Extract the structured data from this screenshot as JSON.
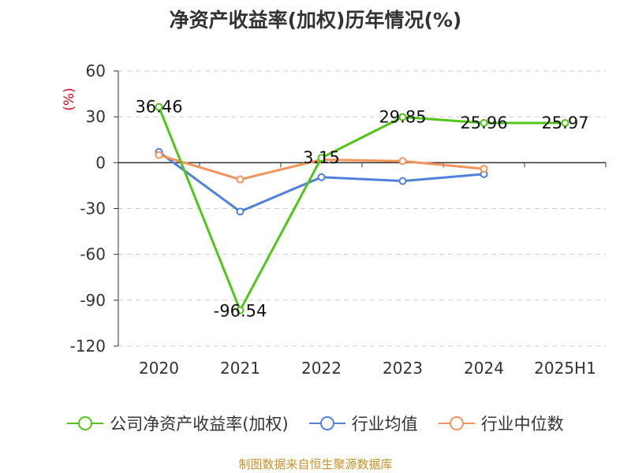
{
  "source_note": "制图数据来自恒生聚源数据库",
  "chart_data": {
    "type": "line",
    "title": "净资产收益率(加权)历年情况(%)",
    "ylabel": "(%)",
    "categories": [
      "2020",
      "2021",
      "2022",
      "2023",
      "2024",
      "2025H1"
    ],
    "ylim": [
      -120,
      60
    ],
    "yticks": [
      60,
      30,
      0,
      -30,
      -60,
      -90,
      -120
    ],
    "grid": true,
    "legend_position": "bottom",
    "series": [
      {
        "name": "公司净资产收益率(加权)",
        "color": "#52c41a",
        "values": [
          36.46,
          -96.54,
          3.15,
          29.85,
          25.96,
          25.97
        ],
        "labels": [
          "36.46",
          "-96.54",
          "3.15",
          "29.85",
          "25.96",
          "25.97"
        ]
      },
      {
        "name": "行业均值",
        "color": "#4f81d9",
        "values": [
          7,
          -32,
          -9.5,
          -12,
          -7.5,
          null
        ]
      },
      {
        "name": "行业中位数",
        "color": "#f4935b",
        "values": [
          5,
          -11,
          2,
          1,
          -4,
          null
        ]
      }
    ]
  }
}
